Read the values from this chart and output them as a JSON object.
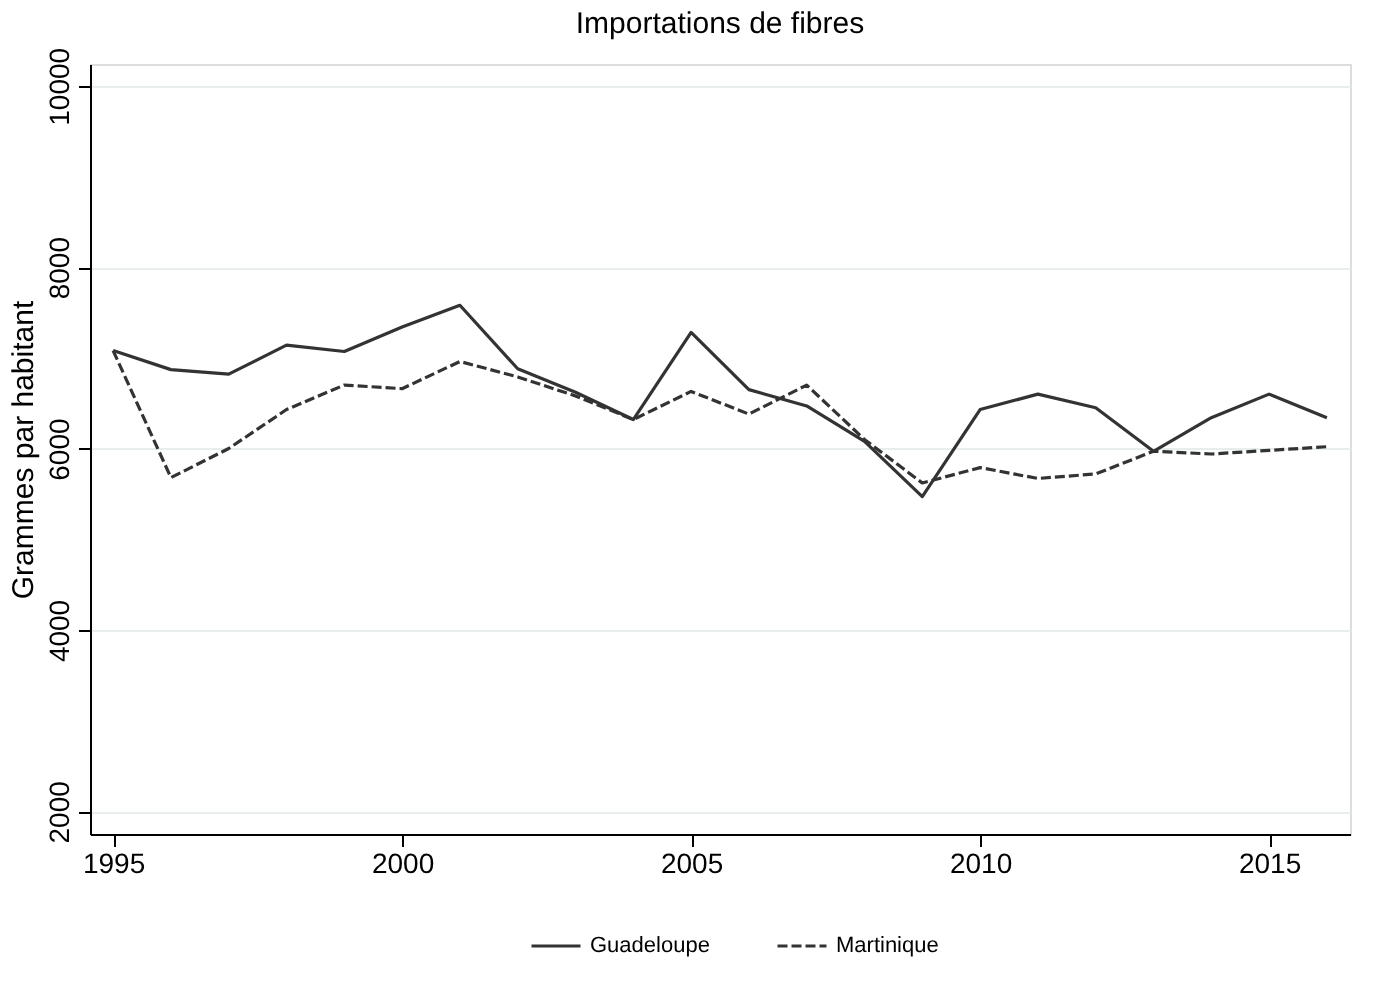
{
  "chart_data": {
    "type": "line",
    "title": "Importations de fibres",
    "ylabel": "Grammes par habitant",
    "x": [
      1995,
      1996,
      1997,
      1998,
      1999,
      2000,
      2001,
      2002,
      2003,
      2004,
      2005,
      2006,
      2007,
      2008,
      2009,
      2010,
      2011,
      2012,
      2013,
      2014,
      2015,
      2016
    ],
    "series": [
      {
        "name": "Guadeloupe",
        "color": "#333333",
        "line_style": "solid",
        "values": [
          7080,
          6870,
          6820,
          7140,
          7070,
          7340,
          7580,
          6880,
          6620,
          6320,
          7280,
          6650,
          6470,
          6080,
          5470,
          6430,
          6600,
          6450,
          5970,
          6340,
          6600,
          6340
        ]
      },
      {
        "name": "Martinique",
        "color": "#333333",
        "line_style": "dashed",
        "values": [
          7080,
          5680,
          6000,
          6430,
          6700,
          6660,
          6960,
          6790,
          6580,
          6320,
          6630,
          6380,
          6700,
          6100,
          5620,
          5790,
          5670,
          5720,
          5970,
          5940,
          5980,
          6020
        ]
      }
    ],
    "xlim": [
      1994.6,
      2016.4
    ],
    "xticks": [
      1995,
      2000,
      2005,
      2010,
      2015
    ],
    "ylim": [
      1750,
      10240
    ],
    "yticks": [
      2000,
      4000,
      6000,
      8000,
      10000
    ],
    "grid": "y",
    "legend": "bottom",
    "marker": "none"
  }
}
